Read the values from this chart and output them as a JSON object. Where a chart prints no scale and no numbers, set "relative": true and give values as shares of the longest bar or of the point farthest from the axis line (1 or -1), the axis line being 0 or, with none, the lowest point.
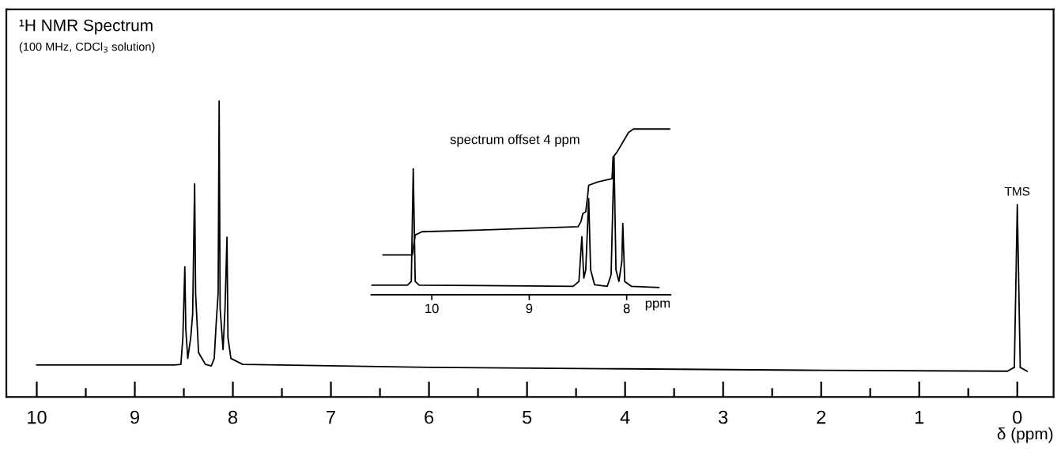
{
  "chart_data": [
    {
      "type": "line",
      "relative": true,
      "title": "¹H NMR Spectrum",
      "subtitle": "(100 MHz, CDCl$_{3}$ solution)",
      "xlabel": "δ (ppm)",
      "xlim": [
        10.31,
        -0.37
      ],
      "xticks": [
        10,
        {
          "value": 9.5,
          "label": null
        },
        9,
        {
          "value": 8.5,
          "label": null
        },
        8,
        {
          "value": 7.5,
          "label": null
        },
        7,
        {
          "value": 6.5,
          "label": null
        },
        6,
        {
          "value": 5.5,
          "label": null
        },
        5,
        {
          "value": 4.5,
          "label": null
        },
        4,
        {
          "value": 3.5,
          "label": null
        },
        3,
        {
          "value": 2.5,
          "label": null
        },
        2,
        {
          "value": 1.5,
          "label": null
        },
        1,
        {
          "value": 0.5,
          "label": null
        },
        0
      ],
      "tick_labels": "x",
      "marker": "none",
      "line_style": "solid",
      "annotations": [
        {
          "text": "TMS",
          "x": 0,
          "y": 0.65
        }
      ],
      "series": [
        {
          "color": "#000000",
          "x": [
            10.0,
            8.6,
            8.53,
            8.51,
            8.49,
            8.48,
            8.46,
            8.43,
            8.41,
            8.39,
            8.38,
            8.35,
            8.28,
            8.22,
            8.19,
            8.17,
            8.15,
            8.14,
            8.13,
            8.1,
            8.08,
            8.06,
            8.05,
            8.02,
            7.9,
            6.0,
            4.0,
            2.0,
            0.1,
            0.03,
            0.0,
            -0.03,
            -0.1
          ],
          "values": [
            0.108,
            0.108,
            0.11,
            0.2,
            0.44,
            0.23,
            0.13,
            0.2,
            0.28,
            0.72,
            0.35,
            0.15,
            0.11,
            0.105,
            0.13,
            0.25,
            0.35,
            1.0,
            0.3,
            0.16,
            0.3,
            0.54,
            0.2,
            0.13,
            0.11,
            0.1,
            0.095,
            0.09,
            0.087,
            0.1,
            0.65,
            0.1,
            0.087
          ]
        }
      ]
    },
    {
      "type": "line",
      "relative": true,
      "title": "spectrum offset 4 ppm",
      "xlabel": "ppm",
      "xlim": [
        10.62,
        7.55
      ],
      "xticks": [
        10,
        9,
        8
      ],
      "tick_labels": "x",
      "marker": "none",
      "line_style": "solid",
      "series": [
        {
          "color": "#000000",
          "x": [
            10.62,
            10.25,
            10.21,
            10.19,
            10.17,
            10.13,
            9.5,
            8.55,
            8.49,
            8.46,
            8.44,
            8.42,
            8.39,
            8.37,
            8.33,
            8.2,
            8.16,
            8.13,
            8.11,
            8.08,
            8.05,
            8.04,
            8.02,
            7.95,
            7.67
          ],
          "values": [
            0.057,
            0.057,
            0.08,
            0.76,
            0.08,
            0.057,
            0.055,
            0.05,
            0.08,
            0.35,
            0.1,
            0.15,
            0.58,
            0.15,
            0.06,
            0.05,
            0.12,
            0.83,
            0.15,
            0.08,
            0.2,
            0.43,
            0.08,
            0.05,
            0.043
          ]
        },
        {
          "color": "#000000",
          "x": [
            10.5,
            10.2,
            10.17,
            10.1,
            9.5,
            8.5,
            8.47,
            8.45,
            8.42,
            8.4,
            8.39,
            8.3,
            8.15,
            8.14,
            8.1,
            8.04,
            7.98,
            7.93,
            7.56
          ],
          "values": [
            0.24,
            0.24,
            0.36,
            0.38,
            0.39,
            0.41,
            0.44,
            0.49,
            0.5,
            0.6,
            0.66,
            0.68,
            0.7,
            0.83,
            0.86,
            0.92,
            0.98,
            1.0,
            1.0
          ]
        }
      ]
    }
  ]
}
